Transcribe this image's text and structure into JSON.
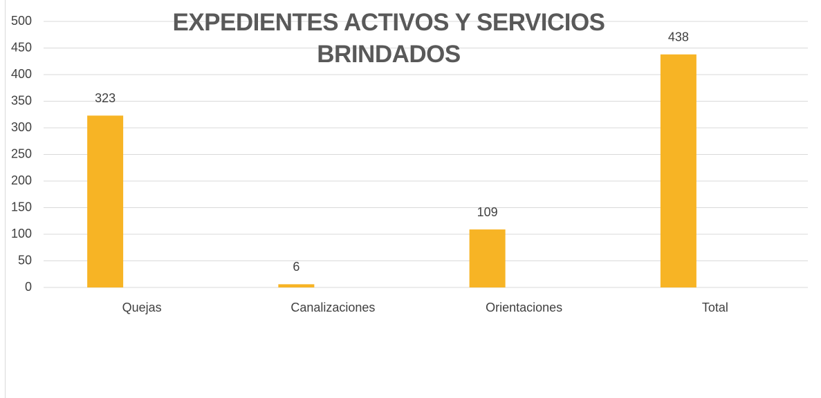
{
  "chart_data": {
    "type": "bar",
    "title": "EXPEDIENTES ACTIVOS Y SERVICIOS BRINDADOS",
    "categories": [
      "Quejas",
      "Canalizaciones",
      "Orientaciones",
      "Total"
    ],
    "values": [
      323,
      6,
      109,
      438
    ],
    "color": "#f7b425",
    "ylim": [
      0,
      500
    ],
    "yticks": [
      0,
      50,
      100,
      150,
      200,
      250,
      300,
      350,
      400,
      450,
      500
    ],
    "grid": true
  }
}
